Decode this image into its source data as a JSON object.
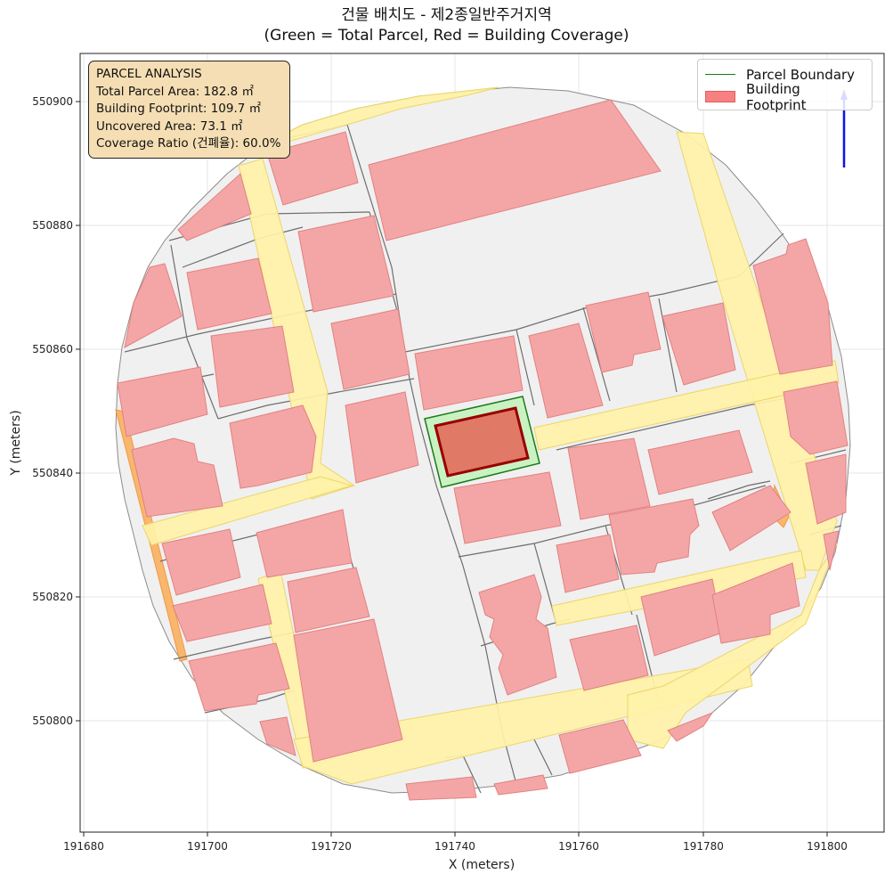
{
  "title": {
    "line1": "건물 배치도 - 제2종일반주거지역",
    "line2": "(Green = Total Parcel, Red = Building Coverage)"
  },
  "axes": {
    "xlabel": "X (meters)",
    "ylabel": "Y (meters)",
    "xticks": [
      "191680",
      "191700",
      "191720",
      "191740",
      "191760",
      "191780",
      "191800"
    ],
    "yticks": [
      "550800",
      "550820",
      "550840",
      "550860",
      "550880",
      "550900"
    ],
    "xlim": [
      191680,
      191810
    ],
    "ylim": [
      550782,
      550908
    ]
  },
  "info_box": {
    "heading": "PARCEL ANALYSIS",
    "total_area": "Total Parcel Area: 182.8 ㎡",
    "footprint": "Building Footprint: 109.7 ㎡",
    "uncovered": "Uncovered Area: 73.1 ㎡",
    "coverage": "Coverage Ratio (건폐율): 60.0%"
  },
  "legend": {
    "position": "upper-right",
    "entries": [
      {
        "label": "Parcel Boundary",
        "color": "#1a7a1a"
      },
      {
        "label": "Building Footprint",
        "color": "#f78080"
      }
    ]
  },
  "colors": {
    "parcel_fill": "#c9f2c2",
    "parcel_edge": "#1a7a1a",
    "building_fill": "#f4a6a6",
    "target_building_fill": "#e07966",
    "target_building_edge": "#990000",
    "road_fill": "#fff2a8",
    "block_fill": "#f0f0f0",
    "lot_line": "#777777",
    "grid": "#e0e0e0",
    "north_arrow": "#1010ee"
  },
  "map_layers": [
    "block-boundary",
    "lot-lines",
    "roads",
    "buildings",
    "target-parcel",
    "target-building",
    "north-arrow"
  ]
}
